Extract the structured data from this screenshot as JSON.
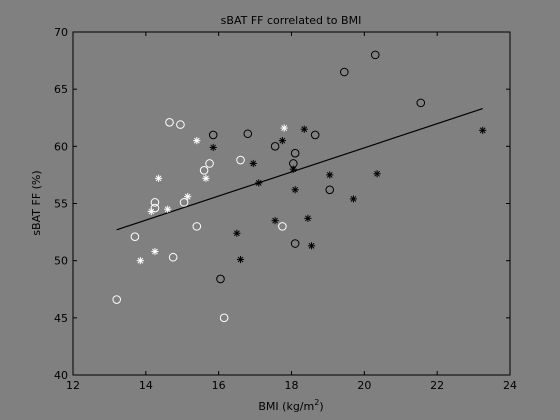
{
  "chart_data": {
    "type": "scatter",
    "title": "sBAT FF correlated to BMI",
    "xlabel": "BMI (kg/m",
    "xlabel_sup": "2",
    "xlabel_end": ")",
    "ylabel": "sBAT FF (%)",
    "xlim": [
      12,
      24
    ],
    "ylim": [
      40,
      70
    ],
    "xticks": [
      12,
      14,
      16,
      18,
      20,
      22,
      24
    ],
    "yticks": [
      40,
      45,
      50,
      55,
      60,
      65,
      70
    ],
    "grid": false,
    "legend": "none",
    "colors": {
      "figure_bg": "#808080",
      "axes_bg": "#808080",
      "axis": "#000000",
      "light_series": "#ffffff",
      "dark_series": "#000000",
      "fit_line": "#000000"
    },
    "series": [
      {
        "marker": "circle",
        "color": "#ffffff",
        "points": [
          [
            13.2,
            46.6
          ],
          [
            13.7,
            52.1
          ],
          [
            14.25,
            55.1
          ],
          [
            14.25,
            54.6
          ],
          [
            14.65,
            62.1
          ],
          [
            14.75,
            50.3
          ],
          [
            14.95,
            61.9
          ],
          [
            15.05,
            55.1
          ],
          [
            15.4,
            53.0
          ],
          [
            15.6,
            57.9
          ],
          [
            15.75,
            58.5
          ],
          [
            16.15,
            45.0
          ],
          [
            16.6,
            58.8
          ],
          [
            17.75,
            53.0
          ]
        ]
      },
      {
        "marker": "asterisk",
        "color": "#ffffff",
        "points": [
          [
            13.85,
            50.0
          ],
          [
            14.15,
            54.3
          ],
          [
            14.25,
            50.8
          ],
          [
            14.35,
            57.2
          ],
          [
            14.6,
            54.5
          ],
          [
            15.15,
            55.6
          ],
          [
            15.4,
            60.5
          ],
          [
            15.65,
            57.2
          ],
          [
            17.8,
            61.6
          ]
        ]
      },
      {
        "marker": "circle",
        "color": "#000000",
        "points": [
          [
            15.85,
            61.0
          ],
          [
            16.05,
            48.4
          ],
          [
            16.8,
            61.1
          ],
          [
            17.55,
            60.0
          ],
          [
            18.05,
            58.5
          ],
          [
            18.1,
            59.4
          ],
          [
            18.1,
            51.5
          ],
          [
            18.65,
            61.0
          ],
          [
            19.05,
            56.2
          ],
          [
            19.45,
            66.5
          ],
          [
            20.3,
            68.0
          ],
          [
            21.55,
            63.8
          ]
        ]
      },
      {
        "marker": "asterisk",
        "color": "#000000",
        "points": [
          [
            15.85,
            59.9
          ],
          [
            16.5,
            52.4
          ],
          [
            16.6,
            50.1
          ],
          [
            16.95,
            58.5
          ],
          [
            17.1,
            56.8
          ],
          [
            17.55,
            53.5
          ],
          [
            17.75,
            60.5
          ],
          [
            18.05,
            58.0
          ],
          [
            18.1,
            56.2
          ],
          [
            18.35,
            61.5
          ],
          [
            18.45,
            53.7
          ],
          [
            18.55,
            51.3
          ],
          [
            19.05,
            57.5
          ],
          [
            19.7,
            55.4
          ],
          [
            20.35,
            57.6
          ],
          [
            23.25,
            61.4
          ]
        ]
      }
    ],
    "fit_line": {
      "x": [
        13.2,
        23.25
      ],
      "y": [
        52.7,
        63.3
      ]
    }
  }
}
